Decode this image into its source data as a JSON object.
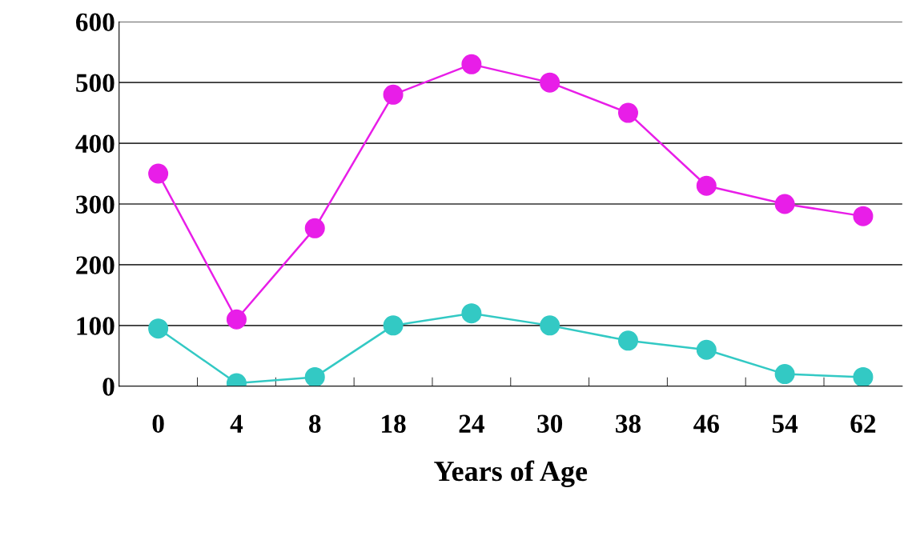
{
  "chart_data": {
    "type": "line",
    "xlabel": "Years of Age",
    "categories": [
      "0",
      "4",
      "8",
      "18",
      "24",
      "30",
      "38",
      "46",
      "54",
      "62"
    ],
    "series": [
      {
        "color": "#e81ee8",
        "values": [
          350,
          110,
          260,
          480,
          530,
          500,
          450,
          330,
          300,
          280
        ]
      },
      {
        "color": "#33c9c4",
        "values": [
          95,
          5,
          15,
          100,
          120,
          100,
          75,
          60,
          20,
          15
        ]
      }
    ],
    "ylim": [
      0,
      600
    ],
    "yticks": [
      0,
      100,
      200,
      300,
      400,
      500,
      600
    ],
    "grid": "y",
    "marker": "circle",
    "line_style": "solid"
  }
}
